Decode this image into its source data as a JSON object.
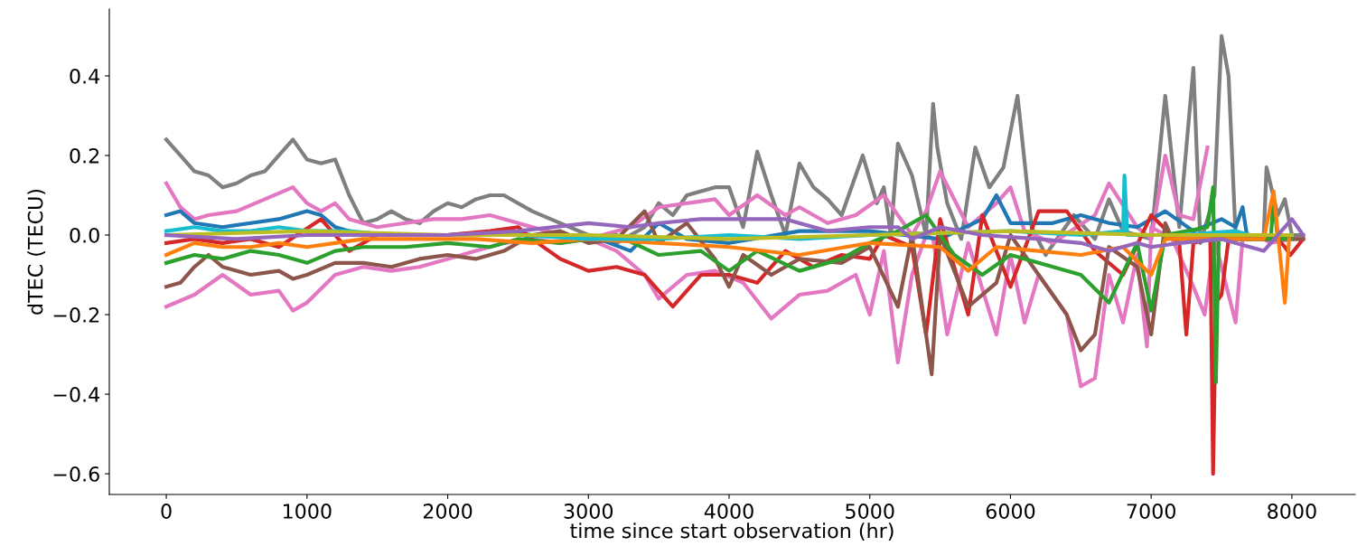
{
  "chart_data": {
    "type": "line",
    "xlabel": "time since start observation (hr)",
    "ylabel": "dTEC (TECU)",
    "xlim": [
      -405,
      8450
    ],
    "ylim": [
      -0.652,
      0.568
    ],
    "xticks": [
      0,
      1000,
      2000,
      3000,
      4000,
      5000,
      6000,
      7000,
      8000
    ],
    "yticks": [
      {
        "value": -0.6,
        "label": "−0.6"
      },
      {
        "value": -0.4,
        "label": "−0.4"
      },
      {
        "value": -0.2,
        "label": "−0.2"
      },
      {
        "value": 0.0,
        "label": "0.0"
      },
      {
        "value": 0.2,
        "label": "0.2"
      },
      {
        "value": 0.4,
        "label": "0.4"
      }
    ],
    "grid": false,
    "marker": "none",
    "line_style": "solid",
    "series": [
      {
        "color": "#7f7f7f",
        "x": [
          0,
          100,
          200,
          300,
          400,
          500,
          600,
          700,
          800,
          900,
          1000,
          1100,
          1200,
          1300,
          1400,
          1500,
          1600,
          1700,
          1800,
          1900,
          2000,
          2100,
          2200,
          2300,
          2400,
          2600,
          2800,
          3000,
          3200,
          3400,
          3500,
          3600,
          3700,
          3900,
          4000,
          4100,
          4200,
          4300,
          4400,
          4500,
          4600,
          4700,
          4800,
          4900,
          4950,
          5050,
          5100,
          5150,
          5200,
          5300,
          5400,
          5450,
          5480,
          5550,
          5650,
          5750,
          5850,
          5950,
          6050,
          6150,
          6250,
          6450,
          6600,
          6700,
          6800,
          6900,
          7000,
          7100,
          7200,
          7300,
          7350,
          7450,
          7500,
          7550,
          7600,
          7800,
          7820,
          7900,
          7950,
          8000,
          8080
        ],
        "values": [
          0.24,
          0.2,
          0.16,
          0.15,
          0.12,
          0.13,
          0.15,
          0.16,
          0.2,
          0.24,
          0.19,
          0.18,
          0.19,
          0.1,
          0.03,
          0.04,
          0.06,
          0.04,
          0.03,
          0.06,
          0.08,
          0.07,
          0.09,
          0.1,
          0.1,
          0.06,
          0.03,
          0.0,
          -0.02,
          0.02,
          0.08,
          0.05,
          0.1,
          0.12,
          0.12,
          0.02,
          0.21,
          0.1,
          0.0,
          0.18,
          0.12,
          0.09,
          0.05,
          0.15,
          0.2,
          0.08,
          0.12,
          0.0,
          0.23,
          0.15,
          0.0,
          0.33,
          0.22,
          0.08,
          -0.01,
          0.22,
          0.12,
          0.17,
          0.35,
          0.02,
          -0.05,
          0.05,
          -0.01,
          0.09,
          0.01,
          0.0,
          -0.01,
          0.35,
          0.02,
          0.42,
          -0.02,
          0.1,
          0.5,
          0.4,
          0.0,
          0.0,
          0.17,
          0.05,
          0.09,
          0.0,
          0.0
        ]
      },
      {
        "color": "#e377c2",
        "x": [
          0,
          100,
          200,
          300,
          500,
          700,
          900,
          1000,
          1100,
          1200,
          1300,
          1500,
          1700,
          1900,
          2100,
          2300,
          2500,
          2700,
          3000,
          3300,
          3500,
          3700,
          3900,
          4000,
          4200,
          4400,
          4500,
          4700,
          4900,
          5100,
          5300,
          5400,
          5500,
          5700,
          5900,
          6000,
          6100,
          6300,
          6600,
          6700,
          6900,
          7000,
          7100,
          7200,
          7300,
          7400
        ],
        "values": [
          0.13,
          0.07,
          0.04,
          0.05,
          0.06,
          0.09,
          0.12,
          0.08,
          0.06,
          0.08,
          0.04,
          0.02,
          0.03,
          0.04,
          0.04,
          0.05,
          0.03,
          0.01,
          -0.01,
          0.02,
          0.07,
          0.08,
          0.09,
          0.05,
          0.1,
          0.05,
          0.07,
          0.03,
          0.05,
          0.1,
          0.0,
          0.06,
          0.16,
          0.02,
          0.08,
          0.12,
          0.01,
          -0.02,
          0.05,
          0.13,
          0.02,
          -0.01,
          0.2,
          0.05,
          0.04,
          0.22
        ]
      },
      {
        "color": "#e377c2",
        "x": [
          0,
          200,
          400,
          600,
          800,
          900,
          1000,
          1200,
          1400,
          1600,
          1800,
          2000,
          2200,
          2400,
          2600,
          2800,
          3000,
          3200,
          3400,
          3500,
          3700,
          3900,
          4100,
          4300,
          4500,
          4700,
          4900,
          5000,
          5100,
          5200,
          5300,
          5400,
          5450,
          5550,
          5700,
          5900,
          6000,
          6100,
          6200,
          6400,
          6500,
          6600,
          6700,
          6800,
          6900,
          6970,
          7000,
          7150,
          7300,
          7380,
          7450,
          7600,
          7650,
          7800,
          7850,
          8000,
          8080
        ],
        "values": [
          -0.18,
          -0.15,
          -0.1,
          -0.15,
          -0.14,
          -0.19,
          -0.17,
          -0.1,
          -0.08,
          -0.09,
          -0.08,
          -0.06,
          -0.04,
          -0.02,
          -0.01,
          -0.02,
          -0.01,
          -0.04,
          -0.1,
          -0.16,
          -0.1,
          -0.09,
          -0.12,
          -0.21,
          -0.15,
          -0.14,
          -0.1,
          -0.2,
          -0.04,
          -0.32,
          -0.1,
          0.0,
          -0.01,
          -0.25,
          -0.02,
          -0.25,
          -0.05,
          -0.22,
          -0.1,
          -0.2,
          -0.38,
          -0.36,
          -0.1,
          -0.22,
          -0.05,
          -0.28,
          0.02,
          -0.01,
          -0.13,
          -0.2,
          -0.01,
          -0.22,
          -0.01,
          -0.01,
          -0.02,
          -0.01,
          -0.01
        ]
      },
      {
        "color": "#1f77b4",
        "x": [
          0,
          100,
          200,
          400,
          600,
          800,
          1000,
          1100,
          1200,
          1400,
          1700,
          2000,
          2400,
          2600,
          3000,
          3300,
          3500,
          3700,
          4000,
          4500,
          5000,
          5500,
          5800,
          5900,
          6000,
          6300,
          6500,
          6700,
          6900,
          7100,
          7300,
          7500,
          7600,
          7650,
          7680
        ],
        "values": [
          0.05,
          0.06,
          0.03,
          0.02,
          0.03,
          0.04,
          0.06,
          0.05,
          0.02,
          0.0,
          0.0,
          0.0,
          0.01,
          0.0,
          0.0,
          -0.04,
          0.03,
          -0.01,
          -0.02,
          0.01,
          0.01,
          -0.01,
          0.04,
          0.1,
          0.03,
          0.03,
          0.05,
          0.03,
          0.02,
          0.06,
          0.01,
          0.04,
          0.02,
          0.07,
          0.0
        ]
      },
      {
        "color": "#d62728",
        "x": [
          0,
          200,
          400,
          600,
          800,
          1100,
          1200,
          1300,
          1500,
          1700,
          2000,
          2300,
          2500,
          2600,
          2800,
          3000,
          3200,
          3400,
          3500,
          3600,
          3800,
          4000,
          4200,
          4400,
          4600,
          4800,
          5000,
          5100,
          5300,
          5400,
          5500,
          5700,
          5800,
          6000,
          6200,
          6400,
          6600,
          6800,
          7000,
          7200,
          7250,
          7300,
          7420,
          7440,
          7460,
          7500,
          7550,
          7900,
          7950,
          7990,
          8080
        ],
        "values": [
          -0.02,
          -0.01,
          -0.02,
          -0.01,
          -0.03,
          0.04,
          0.0,
          -0.04,
          0.0,
          0.0,
          0.0,
          0.01,
          0.02,
          -0.01,
          -0.06,
          -0.09,
          -0.08,
          -0.1,
          -0.14,
          -0.18,
          -0.1,
          -0.1,
          -0.12,
          -0.04,
          -0.08,
          -0.05,
          -0.06,
          0.0,
          -0.03,
          -0.25,
          0.04,
          -0.2,
          0.05,
          -0.13,
          0.06,
          0.06,
          -0.04,
          -0.1,
          0.05,
          -0.02,
          -0.25,
          -0.02,
          -0.01,
          -0.6,
          -0.17,
          -0.15,
          -0.01,
          -0.01,
          -0.03,
          -0.05,
          -0.01
        ]
      },
      {
        "color": "#8c564b",
        "x": [
          0,
          100,
          200,
          300,
          400,
          600,
          800,
          900,
          1000,
          1200,
          1400,
          1600,
          1800,
          2000,
          2200,
          2400,
          2600,
          2800,
          3000,
          3200,
          3400,
          3500,
          3700,
          3900,
          4000,
          4100,
          4300,
          4500,
          4800,
          5000,
          5200,
          5300,
          5440,
          5500,
          5700,
          5900,
          6000,
          6200,
          6400,
          6500,
          6600,
          6700,
          6900,
          7000,
          7100,
          7150,
          7800,
          8080
        ],
        "values": [
          -0.13,
          -0.12,
          -0.08,
          -0.05,
          -0.08,
          -0.1,
          -0.09,
          -0.11,
          -0.1,
          -0.07,
          -0.07,
          -0.08,
          -0.06,
          -0.05,
          -0.06,
          -0.04,
          0.0,
          0.01,
          -0.02,
          -0.01,
          0.06,
          -0.02,
          0.03,
          -0.06,
          -0.13,
          -0.05,
          -0.1,
          -0.06,
          -0.07,
          -0.03,
          -0.18,
          0.0,
          -0.35,
          0.0,
          -0.18,
          -0.12,
          0.0,
          -0.1,
          -0.2,
          -0.29,
          -0.25,
          -0.03,
          -0.08,
          -0.25,
          0.03,
          -0.01,
          -0.01,
          -0.01
        ]
      },
      {
        "color": "#2ca02c",
        "x": [
          0,
          200,
          400,
          600,
          800,
          1000,
          1200,
          1400,
          1700,
          2000,
          2300,
          2500,
          2800,
          3200,
          3500,
          3800,
          4000,
          4200,
          4500,
          4800,
          5000,
          5200,
          5400,
          5600,
          5800,
          6000,
          6200,
          6500,
          6700,
          6900,
          7000,
          7100,
          7400,
          7440,
          7460,
          7480,
          7850,
          7870,
          7900,
          8000
        ],
        "values": [
          -0.07,
          -0.05,
          -0.06,
          -0.04,
          -0.05,
          -0.07,
          -0.04,
          -0.03,
          -0.03,
          -0.02,
          -0.03,
          -0.01,
          -0.02,
          0.0,
          -0.05,
          -0.04,
          -0.09,
          -0.04,
          -0.09,
          -0.06,
          -0.02,
          0.01,
          0.05,
          -0.05,
          -0.1,
          -0.05,
          -0.07,
          -0.1,
          -0.17,
          -0.02,
          -0.19,
          0.0,
          0.02,
          0.12,
          -0.37,
          -0.01,
          -0.01,
          0.09,
          -0.01,
          -0.01
        ]
      },
      {
        "color": "#ff7f0e",
        "x": [
          0,
          200,
          400,
          600,
          800,
          1000,
          1200,
          1400,
          1800,
          2200,
          2600,
          3000,
          3500,
          4000,
          4500,
          5000,
          5500,
          5700,
          5900,
          6200,
          6500,
          6800,
          7000,
          7100,
          7800,
          7870,
          7950,
          7980
        ],
        "values": [
          -0.05,
          -0.02,
          -0.03,
          -0.03,
          -0.02,
          -0.03,
          -0.02,
          -0.01,
          -0.01,
          -0.01,
          -0.02,
          -0.01,
          -0.02,
          -0.03,
          -0.05,
          -0.02,
          -0.03,
          -0.09,
          -0.03,
          -0.04,
          -0.05,
          -0.03,
          -0.1,
          -0.01,
          -0.01,
          0.11,
          -0.17,
          -0.01
        ]
      },
      {
        "color": "#17becf",
        "x": [
          0,
          200,
          400,
          600,
          800,
          1000,
          1300,
          1600,
          2000,
          2500,
          3000,
          3500,
          4000,
          4500,
          5000,
          6000,
          6500,
          6800,
          6810,
          6830,
          7200,
          7600,
          7700
        ],
        "values": [
          0.01,
          0.02,
          0.01,
          0.01,
          0.02,
          0.01,
          0.01,
          0.0,
          0.0,
          0.0,
          -0.01,
          -0.01,
          0.0,
          -0.01,
          0.0,
          0.01,
          0.0,
          0.01,
          0.15,
          0.0,
          0.0,
          0.01,
          0.0
        ]
      },
      {
        "color": "#bcbd22",
        "x": [
          0,
          1000,
          2000,
          3000,
          4000,
          5000,
          6000,
          7000,
          8000
        ],
        "values": [
          0.0,
          0.01,
          0.0,
          0.0,
          -0.01,
          0.0,
          0.01,
          0.0,
          0.0
        ]
      },
      {
        "color": "#9467bd",
        "x": [
          0,
          500,
          1000,
          1500,
          2000,
          2500,
          3000,
          3300,
          3500,
          3800,
          4100,
          4400,
          4700,
          5000,
          5200,
          5300,
          5500,
          5800,
          6200,
          6500,
          6700,
          6900,
          7000,
          7200,
          7500,
          7800,
          7900,
          8000,
          8080
        ],
        "values": [
          0.0,
          -0.01,
          0.0,
          0.0,
          0.0,
          0.01,
          0.03,
          0.02,
          0.03,
          0.04,
          0.04,
          0.04,
          0.01,
          0.02,
          0.02,
          -0.01,
          0.02,
          0.0,
          -0.01,
          -0.02,
          -0.04,
          -0.02,
          -0.03,
          -0.02,
          -0.01,
          -0.04,
          0.0,
          0.04,
          0.0
        ]
      }
    ]
  }
}
